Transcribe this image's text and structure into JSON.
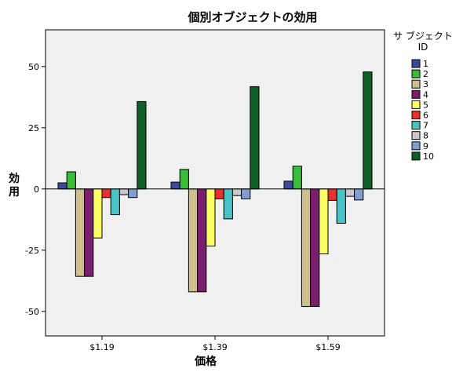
{
  "chart_data": {
    "type": "bar",
    "title": "個別オブジェクトの効用",
    "xlabel": "価格",
    "ylabel": "効用",
    "categories": [
      "$1.19",
      "$1.39",
      "$1.59"
    ],
    "ylim": [
      -60,
      65
    ],
    "yticks": [
      50,
      25,
      0,
      -25,
      -50
    ],
    "ytick_labels": [
      "50",
      "25",
      "0",
      "-25",
      "-50"
    ],
    "grid": false,
    "legend": {
      "title_line1": "サ ブジェクト",
      "title_line2": "ID",
      "placement": "right"
    },
    "series": [
      {
        "name": "1",
        "color": "#3b4aa0",
        "values": [
          2.5,
          2.8,
          3.2
        ]
      },
      {
        "name": "2",
        "color": "#3cba3c",
        "values": [
          7,
          8,
          9.3
        ]
      },
      {
        "name": "3",
        "color": "#cdbf8e",
        "values": [
          -35.7,
          -42,
          -48
        ]
      },
      {
        "name": "4",
        "color": "#7a1f6e",
        "values": [
          -35.7,
          -42,
          -48
        ]
      },
      {
        "name": "5",
        "color": "#ffff66",
        "values": [
          -20,
          -23.3,
          -26.5
        ]
      },
      {
        "name": "6",
        "color": "#e8302a",
        "values": [
          -3.5,
          -4,
          -4.7
        ]
      },
      {
        "name": "7",
        "color": "#49c3c6",
        "values": [
          -10.5,
          -12.2,
          -14
        ]
      },
      {
        "name": "8",
        "color": "#c8c8c8",
        "values": [
          -2.3,
          -2.7,
          -3
        ]
      },
      {
        "name": "9",
        "color": "#7f9fd0",
        "values": [
          -3.5,
          -4,
          -4.5
        ]
      },
      {
        "name": "10",
        "color": "#0e5e2a",
        "values": [
          35.7,
          41.8,
          47.8
        ]
      }
    ]
  }
}
